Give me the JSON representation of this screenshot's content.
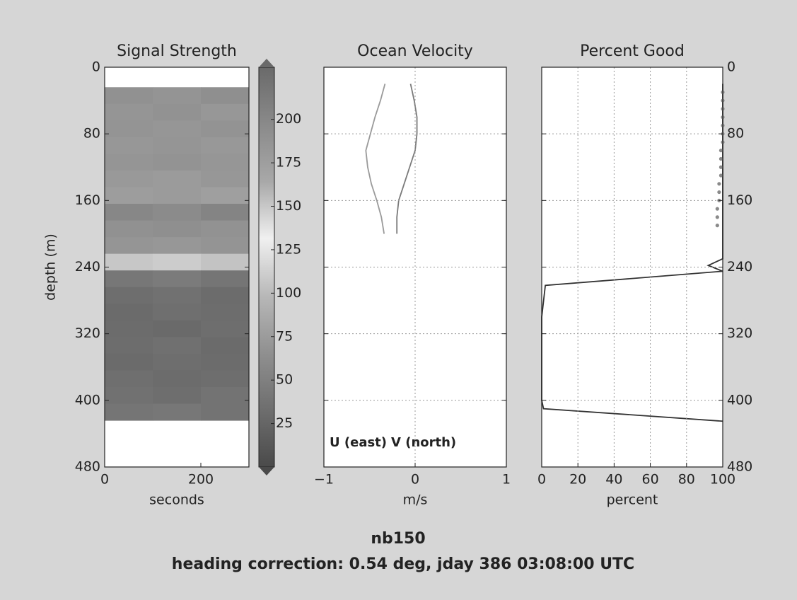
{
  "chart_data": [
    {
      "type": "heatmap",
      "title": "Signal Strength",
      "xlabel": "seconds",
      "ylabel": "depth (m)",
      "xlim": [
        0,
        300
      ],
      "xticks": [
        0,
        200
      ],
      "ylim": [
        480,
        0
      ],
      "yticks": [
        0,
        80,
        160,
        240,
        320,
        400,
        480
      ],
      "yaxis": "left",
      "grid": false,
      "xbins": [
        0,
        100,
        200,
        300
      ],
      "ybins": [
        24,
        44,
        64,
        84,
        104,
        124,
        144,
        164,
        184,
        204,
        224,
        244,
        264,
        284,
        304,
        324,
        344,
        364,
        384,
        404,
        424
      ],
      "values": [
        [
          190,
          186,
          192
        ],
        [
          185,
          188,
          183
        ],
        [
          186,
          184,
          187
        ],
        [
          183,
          185,
          182
        ],
        [
          185,
          187,
          184
        ],
        [
          181,
          179,
          183
        ],
        [
          176,
          178,
          174
        ],
        [
          200,
          196,
          203
        ],
        [
          190,
          192,
          188
        ],
        [
          185,
          183,
          186
        ],
        [
          150,
          148,
          152
        ],
        [
          42,
          45,
          40
        ],
        [
          33,
          36,
          31
        ],
        [
          30,
          34,
          32
        ],
        [
          31,
          29,
          33
        ],
        [
          32,
          35,
          30
        ],
        [
          30,
          33,
          31
        ],
        [
          34,
          31,
          33
        ],
        [
          36,
          33,
          38
        ],
        [
          40,
          42,
          38
        ]
      ],
      "clim": [
        0,
        230
      ],
      "colormap": [
        "#4a4a4a",
        "#6e6e6e",
        "#909090",
        "#b8b8b8",
        "#f0f0f0",
        "#a8a8a8",
        "#8a8a8a",
        "#6a6a6a"
      ],
      "colorbar_ticks": [
        25,
        50,
        75,
        100,
        125,
        150,
        175,
        200
      ]
    },
    {
      "type": "line",
      "title": "Ocean Velocity",
      "xlabel": "m/s",
      "xlim": [
        -1,
        1
      ],
      "xticks": [
        {
          "value": -1,
          "label": "−1"
        },
        0,
        1
      ],
      "ylim": [
        480,
        0
      ],
      "yticks": [
        0,
        80,
        160,
        240,
        320,
        400,
        480
      ],
      "yaxis": "none",
      "grid": true,
      "legend": "lower center",
      "series": [
        {
          "name": "U (east)",
          "color": "#9a9a9a",
          "style": "line",
          "y": [
            20,
            40,
            60,
            80,
            100,
            120,
            140,
            160,
            180,
            200
          ],
          "values": [
            -0.33,
            -0.38,
            -0.44,
            -0.49,
            -0.54,
            -0.52,
            -0.48,
            -0.42,
            -0.37,
            -0.34
          ]
        },
        {
          "name": "V (north)",
          "color": "#7a7a7a",
          "style": "line",
          "y": [
            20,
            40,
            60,
            80,
            100,
            120,
            140,
            160,
            180,
            200
          ],
          "values": [
            -0.05,
            -0.01,
            0.02,
            0.02,
            0.0,
            -0.06,
            -0.12,
            -0.18,
            -0.2,
            -0.2
          ]
        }
      ]
    },
    {
      "type": "line",
      "title": "Percent Good",
      "xlabel": "percent",
      "xlim": [
        0,
        100
      ],
      "xticks": [
        0,
        20,
        40,
        60,
        80,
        100
      ],
      "ylim": [
        480,
        0
      ],
      "yticks": [
        0,
        80,
        160,
        240,
        320,
        400,
        480
      ],
      "yaxis": "right",
      "grid": true,
      "series": [
        {
          "color": "#333333",
          "style": "line",
          "y": [
            20,
            230,
            238,
            245,
            262,
            300,
            400,
            410,
            425
          ],
          "values": [
            100,
            100,
            92,
            100,
            2,
            0,
            0,
            1,
            100
          ]
        },
        {
          "color": "#8a8a8a",
          "style": "dots",
          "y": [
            30,
            40,
            50,
            60,
            70,
            80,
            90,
            100,
            110,
            120,
            130,
            140,
            150,
            160,
            170,
            180,
            190
          ],
          "values": [
            100,
            100,
            100,
            100,
            100,
            100,
            100,
            99,
            99,
            99,
            99,
            98,
            98,
            98,
            97,
            97,
            97
          ]
        }
      ]
    }
  ],
  "footer": {
    "line1": "nb150",
    "line2": "heading correction:  0.54 deg, jday 386 03:08:00 UTC"
  }
}
